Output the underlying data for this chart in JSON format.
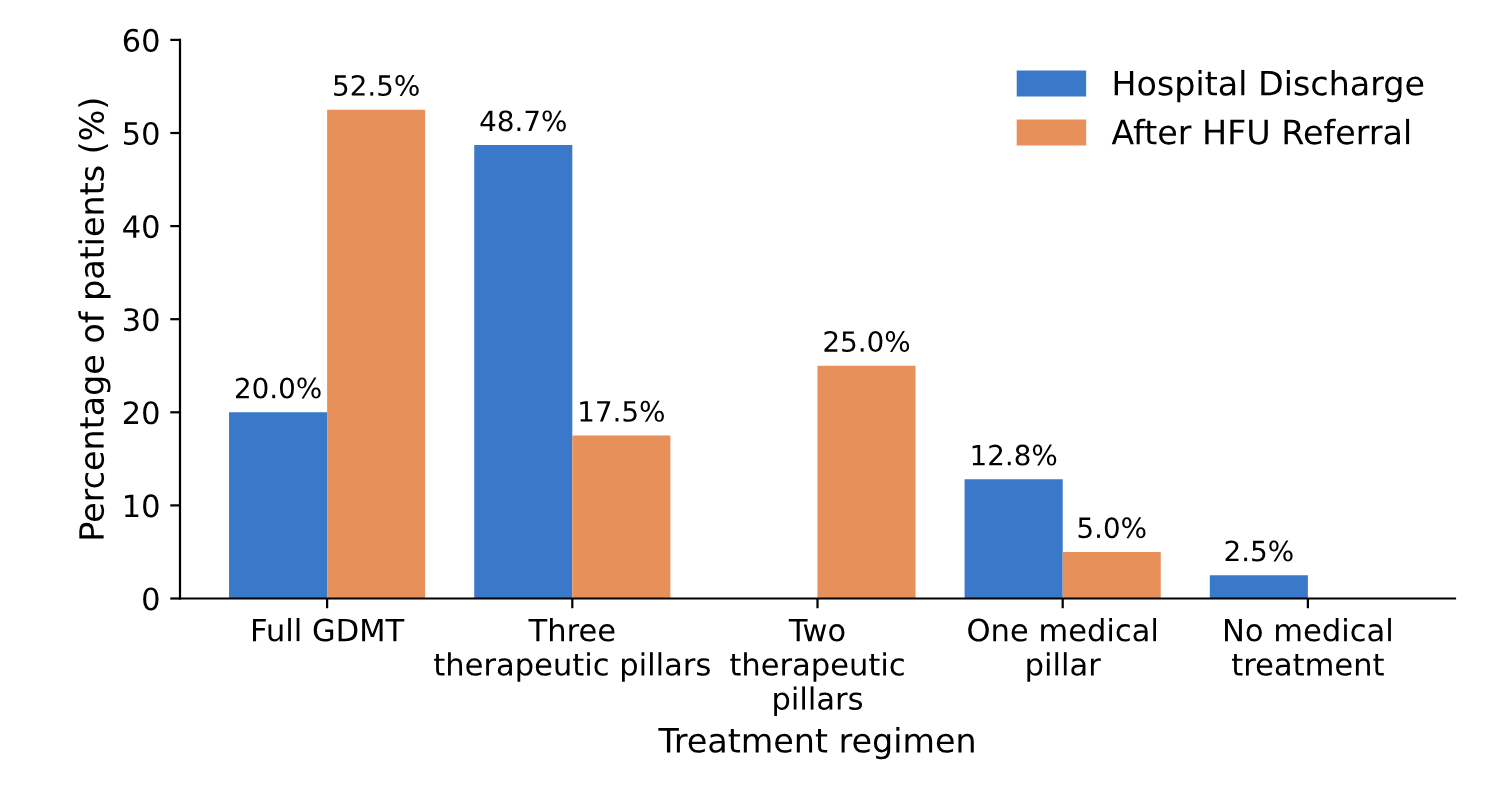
{
  "chart_data": {
    "type": "bar",
    "xlabel": "Treatment regimen",
    "ylabel": "Percentage of patients (%)",
    "categories": [
      "Full GDMT",
      "Three\ntherapeutic pillars",
      "Two\ntherapeutic\npillars",
      "One medical\npillar",
      "No medical\ntreatment"
    ],
    "series": [
      {
        "name": "Hospital Discharge",
        "color": "#3a78c9",
        "values": [
          20.0,
          48.7,
          null,
          12.8,
          2.5
        ],
        "value_labels": [
          "20.0%",
          "48.7%",
          null,
          "12.8%",
          "2.5%"
        ]
      },
      {
        "name": "After HFU Referral",
        "color": "#e8905a",
        "values": [
          52.5,
          17.5,
          25.0,
          5.0,
          null
        ],
        "value_labels": [
          "52.5%",
          "17.5%",
          "25.0%",
          "5.0%",
          null
        ]
      }
    ],
    "ylim": [
      0,
      60
    ],
    "yticks": [
      0,
      10,
      20,
      30,
      40,
      50,
      60
    ],
    "grid": false,
    "legend": "top right"
  }
}
